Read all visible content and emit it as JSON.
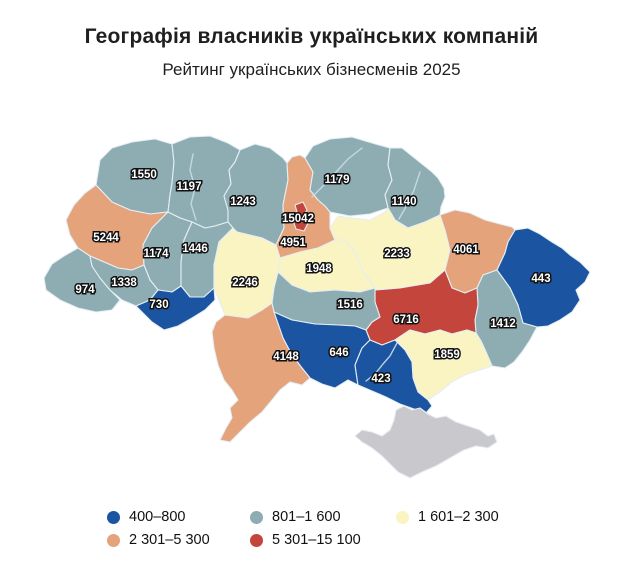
{
  "title": "Географія власників українських компаній",
  "subtitle": "Рейтинг українських бізнесменів 2025",
  "legend": [
    {
      "category": "c1",
      "label": "400–800",
      "color": "#1b54a0"
    },
    {
      "category": "c2",
      "label": "801–1 600",
      "color": "#8dadb3"
    },
    {
      "category": "c3",
      "label": "1 601–2 300",
      "color": "#faf3c2"
    },
    {
      "category": "c4",
      "label": "2 301–5 300",
      "color": "#e4a37b"
    },
    {
      "category": "c5",
      "label": "5 301–15 100",
      "color": "#c4453c"
    }
  ],
  "no_data": {
    "color": "#c9c9cd",
    "region": "Крим"
  },
  "chart_data": {
    "type": "choropleth",
    "title": "Географія власників українських компаній",
    "subtitle": "Рейтинг українських бізнесменів 2025",
    "bins": [
      "400–800",
      "801–1 600",
      "1 601–2 300",
      "2 301–5 300",
      "5 301–15 100"
    ],
    "regions": [
      {
        "id": "volyn",
        "name": "Волинська",
        "value": 1550,
        "category": "c2"
      },
      {
        "id": "rivne",
        "name": "Рівненська",
        "value": 1197,
        "category": "c2"
      },
      {
        "id": "zhytomyr",
        "name": "Житомирська",
        "value": 1243,
        "category": "c2"
      },
      {
        "id": "kyiv-oblast",
        "name": "Київська",
        "value": 4951,
        "category": "c4"
      },
      {
        "id": "kyiv-city",
        "name": "Київ",
        "value": 15042,
        "category": "c5"
      },
      {
        "id": "chernihiv",
        "name": "Чернігівська",
        "value": 1179,
        "category": "c2"
      },
      {
        "id": "sumy",
        "name": "Сумська",
        "value": 1140,
        "category": "c2"
      },
      {
        "id": "lviv",
        "name": "Львівська",
        "value": 5244,
        "category": "c4"
      },
      {
        "id": "ternopil",
        "name": "Тернопільська",
        "value": 1174,
        "category": "c2"
      },
      {
        "id": "khmelnytskyi",
        "name": "Хмельницька",
        "value": 1446,
        "category": "c2"
      },
      {
        "id": "vinnytsia",
        "name": "Вінницька",
        "value": 2246,
        "category": "c3"
      },
      {
        "id": "zakarpattia",
        "name": "Закарпатська",
        "value": 974,
        "category": "c2"
      },
      {
        "id": "ivano-frankivsk",
        "name": "Івано-Франківська",
        "value": 1338,
        "category": "c2"
      },
      {
        "id": "chernivtsi",
        "name": "Чернівецька",
        "value": 730,
        "category": "c1"
      },
      {
        "id": "cherkasy",
        "name": "Черкаська",
        "value": 1948,
        "category": "c3"
      },
      {
        "id": "poltava",
        "name": "Полтавська",
        "value": 2233,
        "category": "c3"
      },
      {
        "id": "kharkiv",
        "name": "Харківська",
        "value": 4061,
        "category": "c4"
      },
      {
        "id": "luhansk",
        "name": "Луганська",
        "value": 443,
        "category": "c1"
      },
      {
        "id": "donetsk",
        "name": "Донецька",
        "value": 1412,
        "category": "c2"
      },
      {
        "id": "dnipro",
        "name": "Дніпропетровська",
        "value": 6716,
        "category": "c5"
      },
      {
        "id": "zaporizhzhia",
        "name": "Запорізька",
        "value": 1859,
        "category": "c3"
      },
      {
        "id": "kirovohrad",
        "name": "Кіровоградська",
        "value": 1516,
        "category": "c2"
      },
      {
        "id": "mykolaiv",
        "name": "Миколаївська",
        "value": 646,
        "category": "c1"
      },
      {
        "id": "odesa",
        "name": "Одеська",
        "value": 4148,
        "category": "c4"
      },
      {
        "id": "kherson",
        "name": "Херсонська",
        "value": 423,
        "category": "c1"
      }
    ],
    "no_data_regions": [
      {
        "id": "crimea",
        "name": "Крим"
      }
    ]
  }
}
